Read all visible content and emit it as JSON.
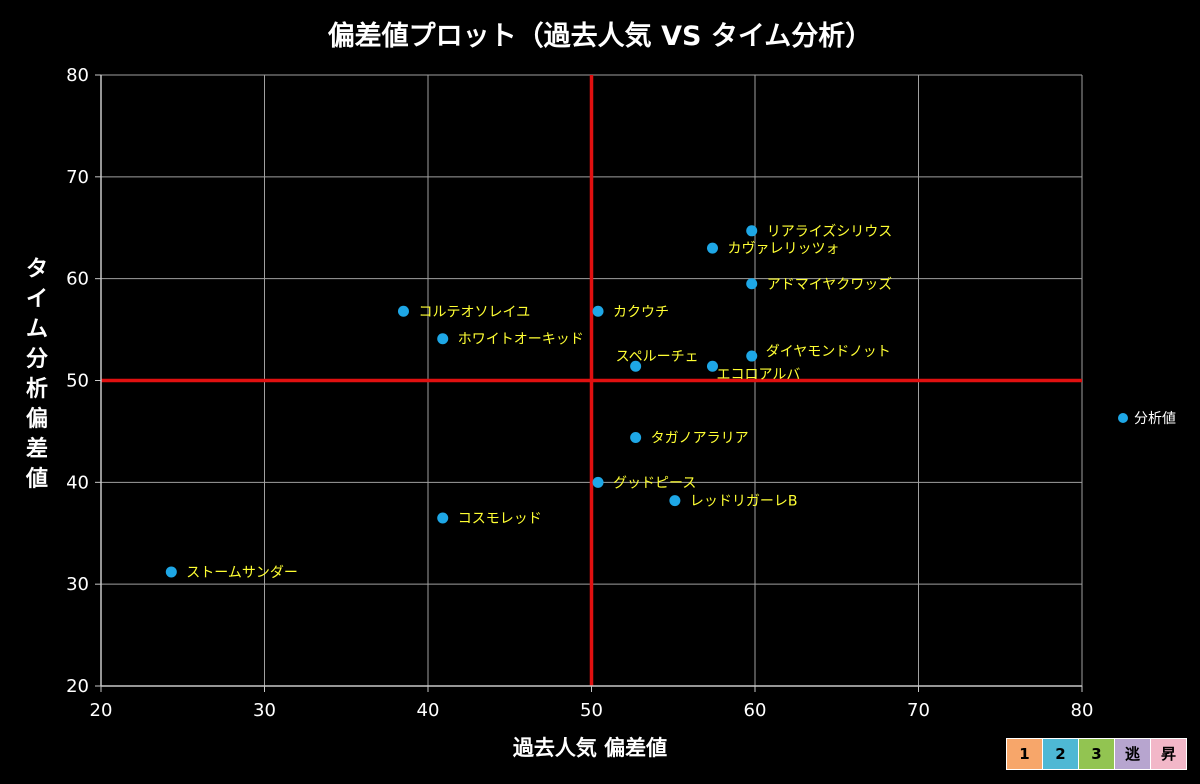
{
  "chart_data": {
    "type": "scatter",
    "title": "偏差値プロット（過去人気 VS タイム分析）",
    "xlabel": "過去人気 偏差値",
    "ylabel": "タイム分析 偏差値",
    "xlim": [
      20,
      80
    ],
    "ylim": [
      20,
      80
    ],
    "x_ticks": [
      "20",
      "30",
      "40",
      "50",
      "60",
      "70",
      "80"
    ],
    "y_ticks": [
      "20",
      "30",
      "40",
      "50",
      "60",
      "70",
      "80"
    ],
    "grid": true,
    "reference_lines": {
      "x": 50,
      "y": 50,
      "color": "#e01010"
    },
    "legend": {
      "position": "right",
      "label": "分析値"
    },
    "series": [
      {
        "name": "分析値",
        "color": "#1ea7e6",
        "label_color": "#ffff33",
        "points": [
          {
            "label": "リアライズシリウス",
            "x": 59.8,
            "y": 64.7
          },
          {
            "label": "カヴァレリッツォ",
            "x": 57.4,
            "y": 63.0
          },
          {
            "label": "アドマイヤクワッズ",
            "x": 59.8,
            "y": 59.5
          },
          {
            "label": "コルテオソレイユ",
            "x": 38.5,
            "y": 56.8
          },
          {
            "label": "カクウチ",
            "x": 50.4,
            "y": 56.8
          },
          {
            "label": "ホワイトオーキッド",
            "x": 40.9,
            "y": 54.1
          },
          {
            "label": "ダイヤモンドノット",
            "x": 59.8,
            "y": 52.4
          },
          {
            "label": "スペルーチェ",
            "x": 52.7,
            "y": 51.4
          },
          {
            "label": "エコロアルバ",
            "x": 57.4,
            "y": 51.4
          },
          {
            "label": "タガノアラリア",
            "x": 52.7,
            "y": 44.4
          },
          {
            "label": "グッドピース",
            "x": 50.4,
            "y": 40.0
          },
          {
            "label": "レッドリガーレB",
            "x": 55.1,
            "y": 38.2
          },
          {
            "label": "コスモレッド",
            "x": 40.9,
            "y": 36.5
          },
          {
            "label": "ストームサンダー",
            "x": 24.3,
            "y": 31.2
          }
        ]
      }
    ]
  },
  "status_boxes": [
    {
      "label": "1",
      "color": "#f7a66a"
    },
    {
      "label": "2",
      "color": "#4eb8d4"
    },
    {
      "label": "3",
      "color": "#92c451"
    },
    {
      "label": "逃",
      "color": "#b7a5cf"
    },
    {
      "label": "昇",
      "color": "#f2b7c8"
    }
  ]
}
